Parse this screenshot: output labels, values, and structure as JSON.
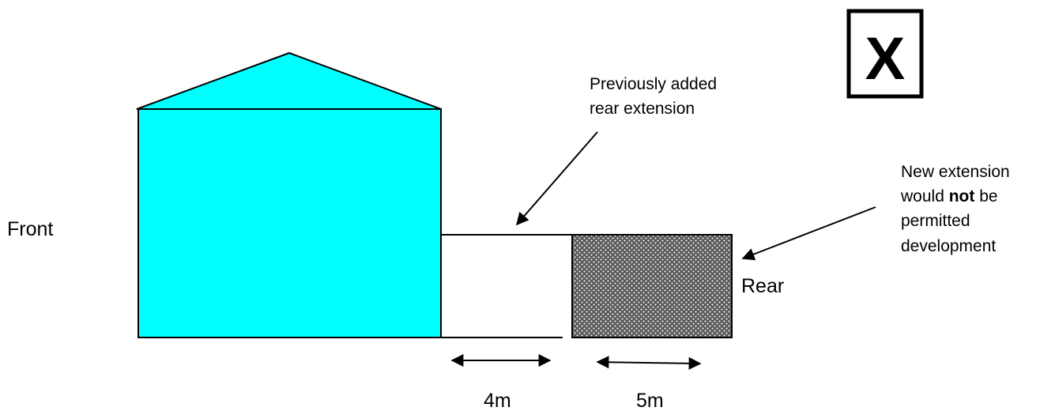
{
  "labels": {
    "front": "Front",
    "rear": "Rear",
    "previous_line1": "Previously added",
    "previous_line2": "rear extension",
    "new_line1": "New extension",
    "new_line2_pre": "would ",
    "new_line2_bold": "not",
    "new_line2_post": " be",
    "new_line3": "permitted",
    "new_line4": "development",
    "dim_previous": "4m",
    "dim_new": "5m",
    "verdict_mark": "X"
  },
  "colors": {
    "house_fill": "#00ffff",
    "outline": "#000000",
    "background": "#ffffff",
    "pattern_dark": "#5a5a5a",
    "pattern_light": "#ffffff"
  }
}
